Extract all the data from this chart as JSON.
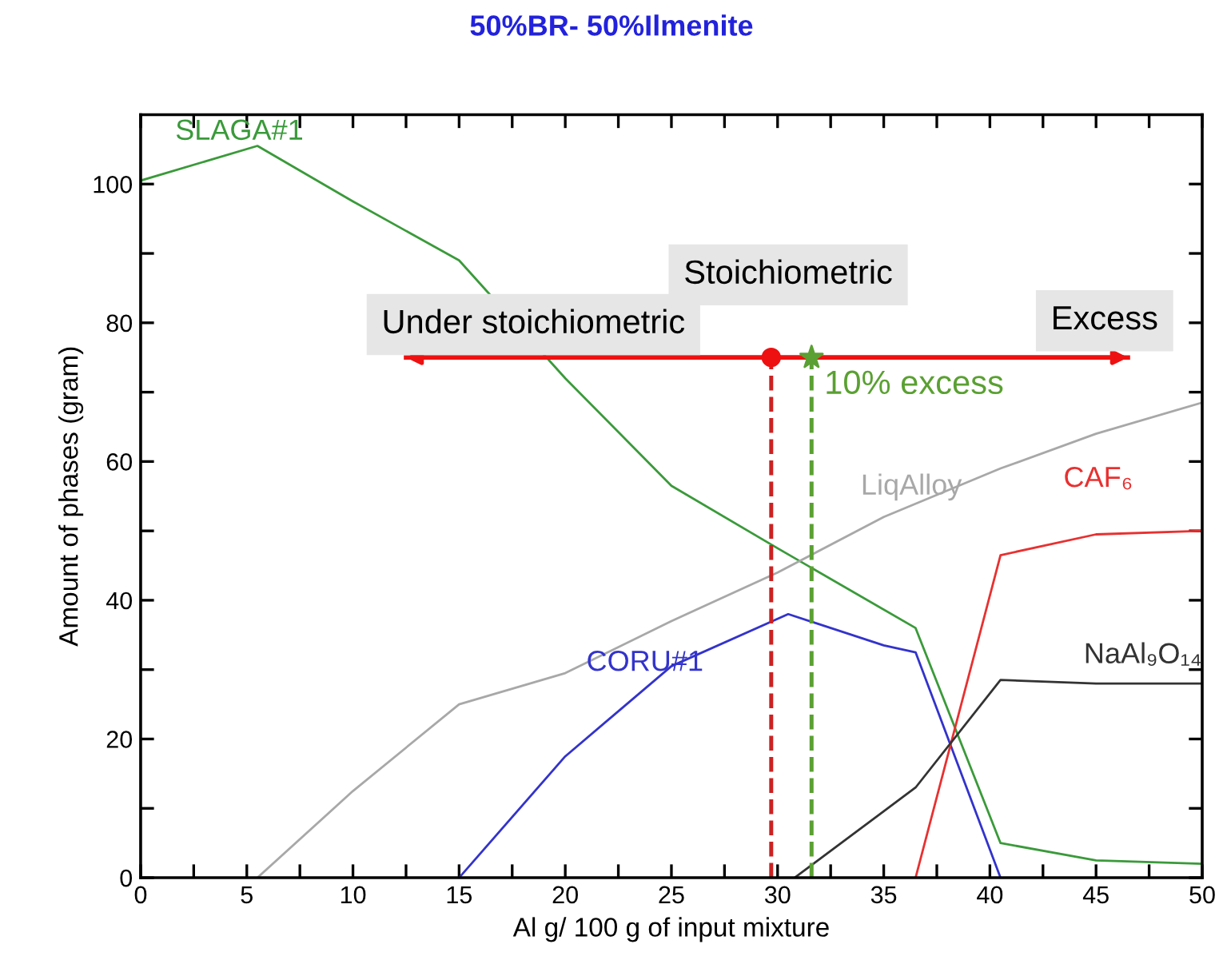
{
  "chart_data": {
    "type": "line",
    "title": "50%BR- 50%Ilmenite",
    "xlabel": "Al g/ 100 g of input mixture",
    "ylabel": "Amount of phases (gram)",
    "xlim": [
      0,
      50
    ],
    "ylim": [
      0,
      110
    ],
    "xticks": [
      0,
      {
        "value": 2.5,
        "label": null
      },
      5,
      {
        "value": 7.5,
        "label": null
      },
      10,
      {
        "value": 12.5,
        "label": null
      },
      15,
      {
        "value": 17.5,
        "label": null
      },
      20,
      {
        "value": 22.5,
        "label": null
      },
      25,
      {
        "value": 27.5,
        "label": null
      },
      30,
      {
        "value": 32.5,
        "label": null
      },
      35,
      {
        "value": 37.5,
        "label": null
      },
      40,
      {
        "value": 42.5,
        "label": null
      },
      45,
      {
        "value": 47.5,
        "label": null
      },
      50
    ],
    "yticks": [
      0,
      {
        "value": 10,
        "label": null
      },
      20,
      {
        "value": 30,
        "label": null
      },
      40,
      {
        "value": 50,
        "label": null
      },
      60,
      {
        "value": 70,
        "label": null
      },
      80,
      {
        "value": 90,
        "label": null
      },
      100
    ],
    "grid": false,
    "legend": false,
    "marker": "none",
    "line_style": "solid",
    "series": [
      {
        "name": "SLAGA#1",
        "color": "#3a9a3a",
        "x": [
          0,
          5.5,
          10,
          15,
          20,
          25,
          30,
          36.5,
          40.5,
          45,
          50
        ],
        "values": [
          100.5,
          105.5,
          97.5,
          89,
          72,
          56.5,
          47.5,
          36,
          5,
          2.5,
          2
        ]
      },
      {
        "name": "LiqAlloy",
        "color": "#a8a8a8",
        "x": [
          5.5,
          10,
          15,
          20,
          25,
          30,
          35,
          40.5,
          45,
          50
        ],
        "values": [
          0,
          12.5,
          25,
          29.5,
          37,
          44,
          52,
          59,
          64,
          68.5
        ]
      },
      {
        "name": "CORU#1",
        "color": "#3333cc",
        "x": [
          15,
          20,
          25,
          30.5,
          35,
          36.5,
          40.5
        ],
        "values": [
          0,
          17.5,
          30.5,
          38,
          33.5,
          32.5,
          0
        ]
      },
      {
        "name": "CAF₆",
        "color": "#e83030",
        "x": [
          36.5,
          40.5,
          45,
          50
        ],
        "values": [
          0,
          46.5,
          49.5,
          50
        ]
      },
      {
        "name": "NaAl₉O₁₄",
        "color": "#333333",
        "x": [
          30.8,
          36.5,
          40.5,
          45,
          50
        ],
        "values": [
          0,
          13,
          28.5,
          28,
          28
        ]
      },
      {
        "type": "line",
        "color": "#ee1111",
        "x": [
          12.5,
          46.5
        ],
        "values": [
          75,
          75
        ]
      },
      {
        "type": "scatter",
        "marker": "circle",
        "color": "#ee1111",
        "x": [
          29.7
        ],
        "values": [
          75
        ]
      },
      {
        "type": "scatter",
        "marker": "star",
        "color": "#5aa032",
        "x": [
          31.6
        ],
        "values": [
          75
        ]
      }
    ],
    "ref_lines": [
      {
        "axis": "x",
        "value": 29.7,
        "color": "#cc2222",
        "line_style": "dashed"
      },
      {
        "axis": "x",
        "value": 31.6,
        "color": "#5aa032",
        "line_style": "dashed",
        "label": "10% excess"
      }
    ],
    "annotations": [
      "Under stoichiometric",
      "Stoichiometric",
      "Excess"
    ]
  }
}
